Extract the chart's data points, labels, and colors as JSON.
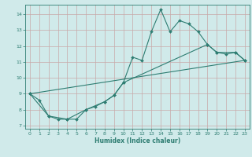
{
  "xlabel": "Humidex (Indice chaleur)",
  "bg_color": "#d0eaea",
  "grid_color": "#c8a8a8",
  "line_color": "#2e7d72",
  "xlim": [
    -0.5,
    23.5
  ],
  "ylim": [
    6.8,
    14.6
  ],
  "xticks": [
    0,
    1,
    2,
    3,
    4,
    5,
    6,
    7,
    8,
    9,
    10,
    11,
    12,
    13,
    14,
    15,
    16,
    17,
    18,
    19,
    20,
    21,
    22,
    23
  ],
  "yticks": [
    7,
    8,
    9,
    10,
    11,
    12,
    13,
    14
  ],
  "line1_x": [
    0,
    1,
    2,
    3,
    4,
    5,
    6,
    7,
    8,
    9,
    10,
    11,
    12,
    13,
    14,
    15,
    16,
    17,
    18,
    19,
    20,
    21,
    22,
    23
  ],
  "line1_y": [
    9.0,
    8.6,
    7.6,
    7.4,
    7.4,
    7.4,
    8.0,
    8.2,
    8.5,
    8.9,
    9.7,
    11.3,
    11.1,
    12.9,
    14.3,
    12.9,
    13.6,
    13.4,
    12.9,
    12.1,
    11.6,
    11.5,
    11.6,
    11.1
  ],
  "line2_x": [
    0,
    2,
    4,
    6,
    8,
    9,
    10,
    19,
    20,
    22,
    23
  ],
  "line2_y": [
    9.0,
    7.6,
    7.4,
    8.0,
    8.5,
    8.9,
    9.7,
    12.1,
    11.6,
    11.6,
    11.1
  ],
  "line3_x": [
    0,
    23
  ],
  "line3_y": [
    9.0,
    11.1
  ]
}
